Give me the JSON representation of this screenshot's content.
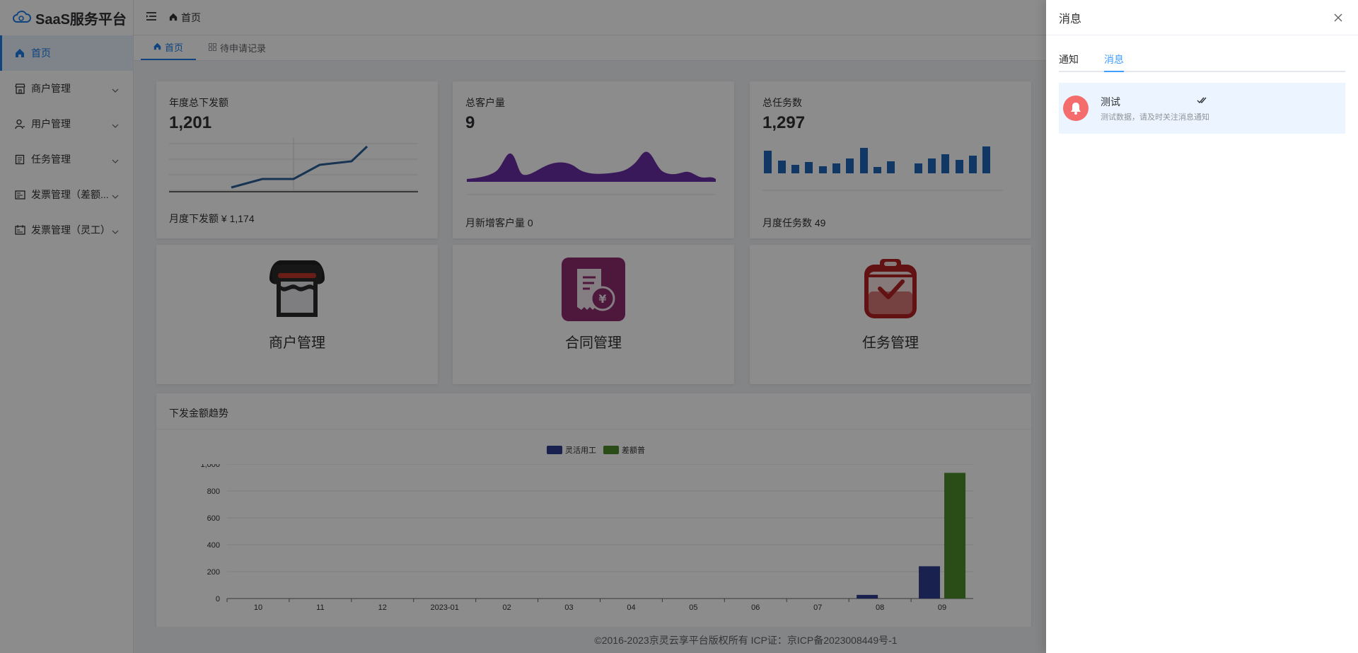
{
  "app": {
    "title": "SaaS服务平台"
  },
  "sidebar": {
    "items": [
      {
        "label": "首页",
        "icon": "home-icon",
        "active": true
      },
      {
        "label": "商户管理",
        "icon": "store-icon"
      },
      {
        "label": "用户管理",
        "icon": "user-icon"
      },
      {
        "label": "任务管理",
        "icon": "task-icon"
      },
      {
        "label": "发票管理（差额...",
        "icon": "invoice-icon"
      },
      {
        "label": "发票管理（灵工）",
        "icon": "invoice-flex-icon"
      }
    ]
  },
  "header": {
    "breadcrumb": "首页"
  },
  "tabs": [
    {
      "label": "首页",
      "active": true
    },
    {
      "label": "待申请记录"
    }
  ],
  "stats": [
    {
      "title": "年度总下发额",
      "value": "1,201",
      "footer": "月度下发额 ¥ 1,174"
    },
    {
      "title": "总客户量",
      "value": "9",
      "footer": "月新增客户量 0"
    },
    {
      "title": "总任务数",
      "value": "1,297",
      "footer": "月度任务数 49"
    }
  ],
  "nav_cards": [
    {
      "label": "商户管理",
      "icon": "store-icon"
    },
    {
      "label": "合同管理",
      "icon": "contract-icon"
    },
    {
      "label": "任务管理",
      "icon": "task-icon"
    }
  ],
  "trend": {
    "title": "下发金额趋势"
  },
  "chart_data": {
    "type": "bar",
    "title": "下发金额趋势",
    "categories": [
      "10",
      "11",
      "12",
      "2023-01",
      "02",
      "03",
      "04",
      "05",
      "06",
      "07",
      "08",
      "09"
    ],
    "series": [
      {
        "name": "灵活用工",
        "color": "#2f3f8f",
        "values": [
          0,
          0,
          0,
          0,
          0,
          0,
          0,
          0,
          0,
          0,
          27,
          240
        ]
      },
      {
        "name": "差额普",
        "color": "#4d8a2a",
        "values": [
          0,
          0,
          0,
          0,
          0,
          0,
          0,
          0,
          0,
          0,
          0,
          935
        ]
      }
    ],
    "yticks": [
      "0",
      "200",
      "400",
      "600",
      "800",
      "1,000"
    ],
    "ylim": [
      0,
      1000
    ],
    "legend": "top-center",
    "grid": true
  },
  "footer": {
    "text": "©2016-2023京灵云享平台版权所有 ICP证：京ICP备2023008449号-1"
  },
  "drawer": {
    "title": "消息",
    "tabs": [
      {
        "label": "通知"
      },
      {
        "label": "消息",
        "active": true
      }
    ],
    "messages": [
      {
        "title": "测试",
        "desc": "测试数据，请及时关注消息通知"
      }
    ]
  },
  "colors": {
    "accent": "#1e7ce8",
    "purple": "#6b2fa6",
    "blue_bar": "#1f66b8",
    "line": "#2b5f96",
    "store_red": "#c0392b",
    "contract_bg": "#8e2a6e",
    "task_red": "#b22222"
  }
}
